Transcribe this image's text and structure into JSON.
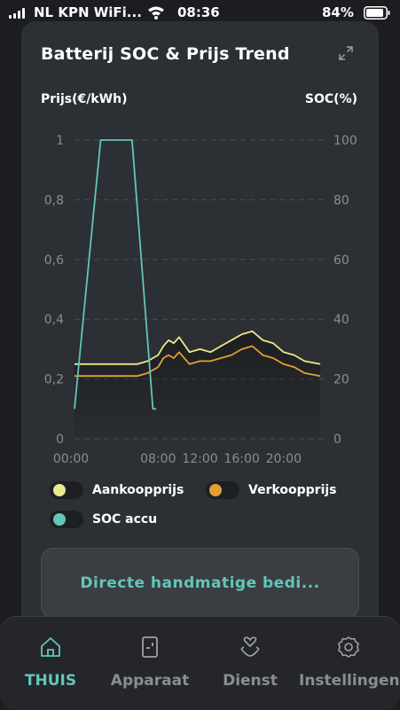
{
  "status_bar": {
    "carrier": "NL KPN WiFi...",
    "time": "08:36",
    "battery": "84%"
  },
  "card": {
    "title": "Batterij SOC & Prijs Trend",
    "left_axis_title": "Prijs(€/kWh)",
    "right_axis_title": "SOC(%)"
  },
  "chart_data": {
    "type": "line",
    "x_ticks": [
      "00:00",
      "08:00",
      "12:00",
      "16:00",
      "20:00"
    ],
    "y_left_ticks": [
      "0",
      "0,2",
      "0,4",
      "0,6",
      "0,8",
      "1"
    ],
    "y_right_ticks": [
      "0",
      "20",
      "40",
      "60",
      "80",
      "100"
    ],
    "ylim_left": [
      0,
      1
    ],
    "ylim_right": [
      0,
      100
    ],
    "grid": true,
    "series": [
      {
        "name": "Aankoopprijs",
        "axis": "left",
        "color": "#e8e98a",
        "x_hours": [
          0,
          1,
          2,
          3,
          4,
          5,
          6,
          7,
          8,
          8.5,
          9,
          9.5,
          10,
          11,
          12,
          13,
          14,
          15,
          16,
          17,
          18,
          19,
          20,
          21,
          22,
          23.5
        ],
        "values": [
          0.25,
          0.25,
          0.25,
          0.25,
          0.25,
          0.25,
          0.25,
          0.26,
          0.28,
          0.31,
          0.33,
          0.32,
          0.34,
          0.29,
          0.3,
          0.29,
          0.31,
          0.33,
          0.35,
          0.36,
          0.33,
          0.32,
          0.29,
          0.28,
          0.26,
          0.25
        ]
      },
      {
        "name": "Verkoopprijs",
        "axis": "left",
        "color": "#e2a032",
        "x_hours": [
          0,
          1,
          2,
          3,
          4,
          5,
          6,
          7,
          8,
          8.5,
          9,
          9.5,
          10,
          11,
          12,
          13,
          14,
          15,
          16,
          17,
          18,
          19,
          20,
          21,
          22,
          23.5
        ],
        "values": [
          0.21,
          0.21,
          0.21,
          0.21,
          0.21,
          0.21,
          0.21,
          0.22,
          0.24,
          0.27,
          0.28,
          0.27,
          0.29,
          0.25,
          0.26,
          0.26,
          0.27,
          0.28,
          0.3,
          0.31,
          0.28,
          0.27,
          0.25,
          0.24,
          0.22,
          0.21
        ]
      },
      {
        "name": "SOC accu",
        "axis": "right",
        "color": "#62c6b8",
        "x_hours": [
          0,
          2.5,
          5.5,
          7.5,
          7.8
        ],
        "values": [
          10,
          100,
          100,
          10,
          10
        ]
      }
    ]
  },
  "legend": [
    {
      "label": "Aankoopprijs",
      "color": "#e8e98a"
    },
    {
      "label": "Verkoopprijs",
      "color": "#e2a032"
    },
    {
      "label": "SOC accu",
      "color": "#62c6b8"
    }
  ],
  "manual_button": "Directe handmatige bedi...",
  "nav": [
    {
      "label": "THUIS",
      "icon": "home-icon",
      "active": true
    },
    {
      "label": "Apparaat",
      "icon": "device-icon",
      "active": false
    },
    {
      "label": "Dienst",
      "icon": "service-icon",
      "active": false
    },
    {
      "label": "Instellingen",
      "icon": "settings-icon",
      "active": false
    }
  ]
}
